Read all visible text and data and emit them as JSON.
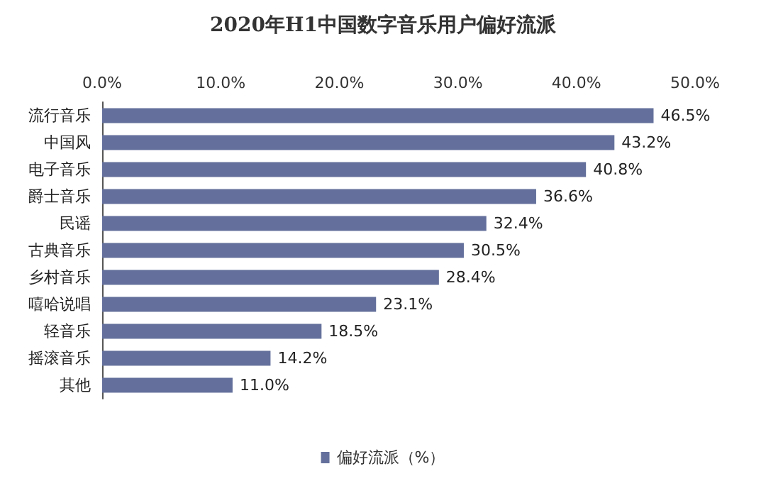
{
  "chart_data": {
    "type": "bar",
    "orientation": "horizontal",
    "title": "2020年H1中国数字音乐用户偏好流派",
    "categories": [
      "流行音乐",
      "中国风",
      "电子音乐",
      "爵士音乐",
      "民谣",
      "古典音乐",
      "乡村音乐",
      "嘻哈说唱",
      "轻音乐",
      "摇滚音乐",
      "其他"
    ],
    "series": [
      {
        "name": "偏好流派（%）",
        "color": "#64709b",
        "values": [
          46.5,
          43.2,
          40.8,
          36.6,
          32.4,
          30.5,
          28.4,
          23.1,
          18.5,
          14.2,
          11.0
        ],
        "value_labels": [
          "46.5%",
          "43.2%",
          "40.8%",
          "36.6%",
          "32.4%",
          "30.5%",
          "28.4%",
          "23.1%",
          "18.5%",
          "14.2%",
          "11.0%"
        ]
      }
    ],
    "xlim": [
      0,
      50
    ],
    "xticks": [
      {
        "value": 0,
        "label": "0.0%"
      },
      {
        "value": 10,
        "label": "10.0%"
      },
      {
        "value": 20,
        "label": "20.0%"
      },
      {
        "value": 30,
        "label": "30.0%"
      },
      {
        "value": 40,
        "label": "40.0%"
      },
      {
        "value": 50,
        "label": "50.0%"
      }
    ],
    "grid": false,
    "legend": "bottom"
  }
}
